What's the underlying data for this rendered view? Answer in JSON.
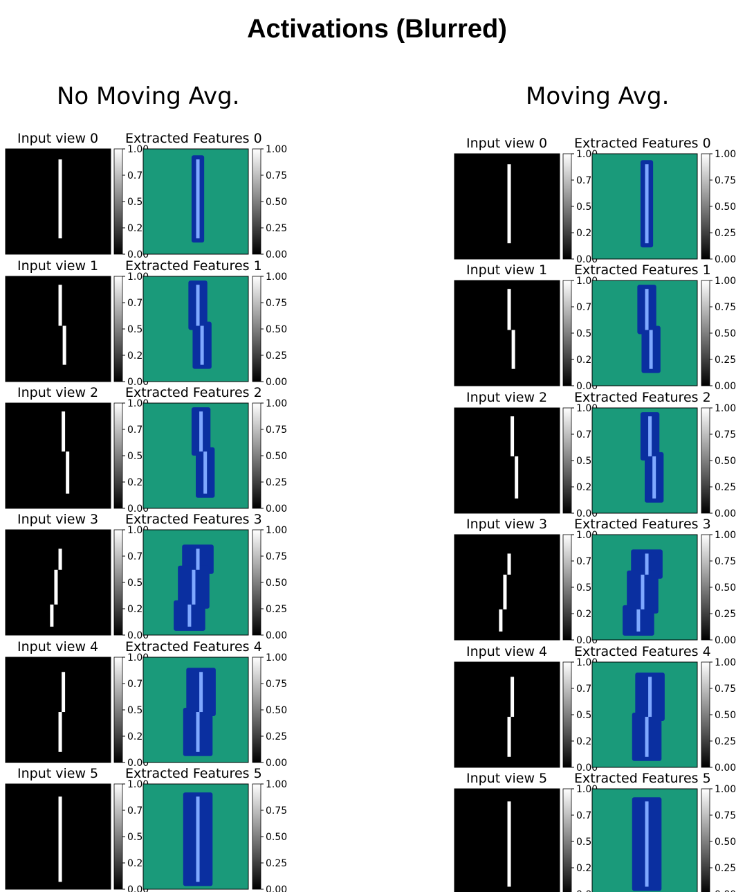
{
  "title": "Activations (Blurred)",
  "columns": [
    {
      "title": "No Moving Avg.",
      "panels": [
        {
          "input_label": "Input view 0",
          "feature_label": "Extracted Features 0"
        },
        {
          "input_label": "Input view 1",
          "feature_label": "Extracted Features 1"
        },
        {
          "input_label": "Input view 2",
          "feature_label": "Extracted Features 2"
        },
        {
          "input_label": "Input view 3",
          "feature_label": "Extracted Features 3"
        },
        {
          "input_label": "Input view 4",
          "feature_label": "Extracted Features 4"
        },
        {
          "input_label": "Input view 5",
          "feature_label": "Extracted Features 5"
        }
      ]
    },
    {
      "title": "Moving Avg.",
      "panels": [
        {
          "input_label": "Input view 0",
          "feature_label": "Extracted Features 0"
        },
        {
          "input_label": "Input view 1",
          "feature_label": "Extracted Features 1"
        },
        {
          "input_label": "Input view 2",
          "feature_label": "Extracted Features 2"
        },
        {
          "input_label": "Input view 3",
          "feature_label": "Extracted Features 3"
        },
        {
          "input_label": "Input view 4",
          "feature_label": "Extracted Features 4"
        },
        {
          "input_label": "Input view 5",
          "feature_label": "Extracted Features 5"
        }
      ]
    }
  ],
  "colorbar_ticks": [
    "1.00",
    "0.75",
    "0.50",
    "0.25",
    "0.00"
  ],
  "colors": {
    "input_background": "#000000",
    "input_stroke": "#ffffff",
    "feature_background": "#1a9a7a",
    "feature_blob": "#0a2fa0",
    "feature_core": "#7fa8ff"
  }
}
